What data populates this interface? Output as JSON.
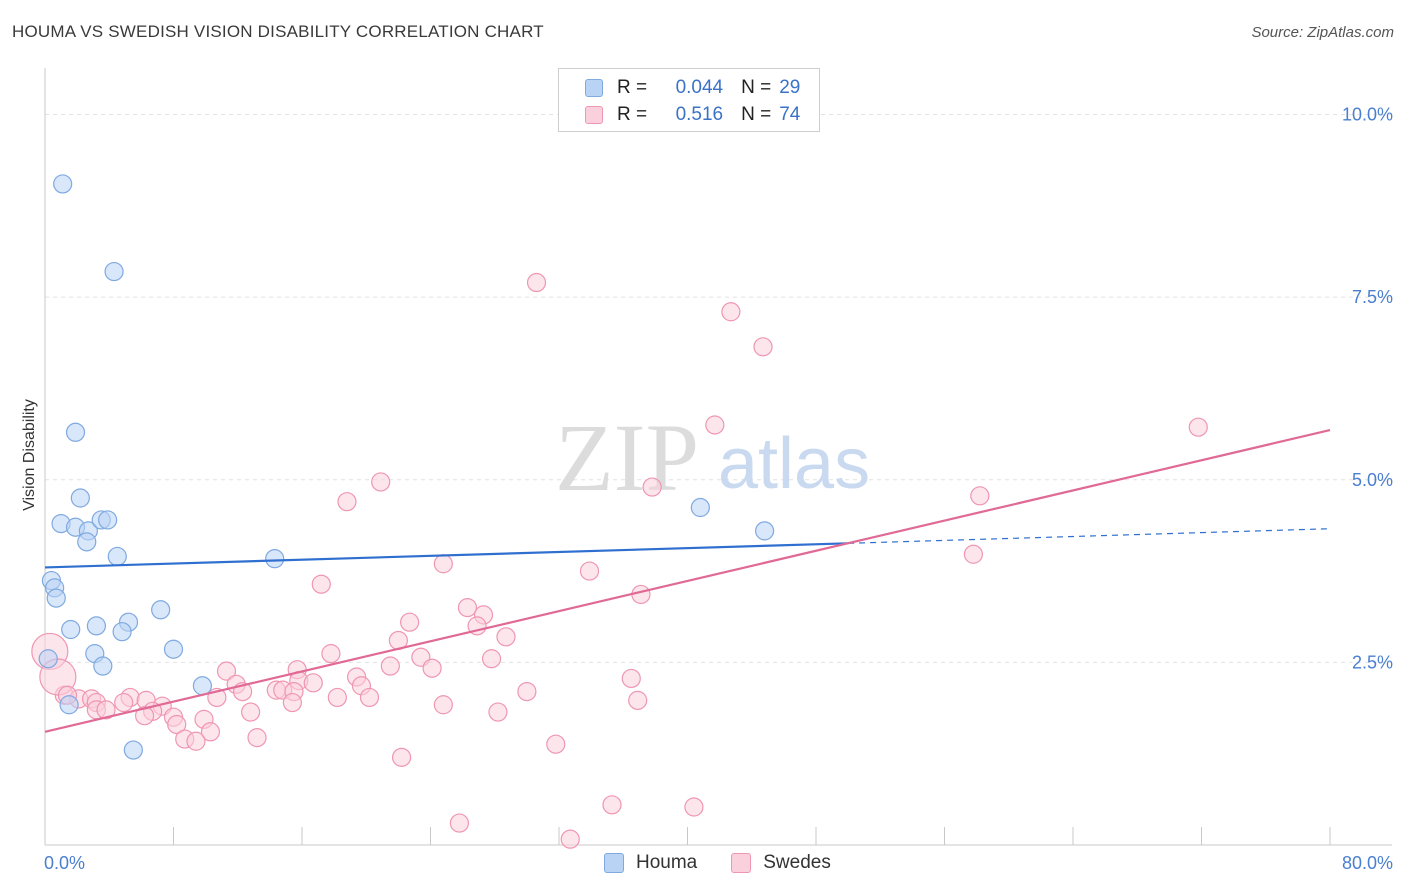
{
  "header": {
    "title": "HOUMA VS SWEDISH VISION DISABILITY CORRELATION CHART",
    "source": "Source: ZipAtlas.com"
  },
  "legend": {
    "rows": [
      {
        "r_label": "R =",
        "r_value": "0.044",
        "n_label": "N =",
        "n_value": "29",
        "color": "#a9c8f0",
        "border": "#7fa9e0"
      },
      {
        "r_label": "R =",
        "r_value": "0.516",
        "n_label": "N =",
        "n_value": "74",
        "color": "#f9c3d3",
        "border": "#ef96b3"
      }
    ]
  },
  "bottom_legend": [
    {
      "label": "Houma",
      "color": "#b9d3f5",
      "border": "#7fa9e0"
    },
    {
      "label": "Swedes",
      "color": "#fbd0dd",
      "border": "#ef96b3"
    }
  ],
  "watermark": {
    "zip": "ZIP",
    "atlas": "atlas"
  },
  "chart_data": {
    "type": "scatter",
    "title": "HOUMA VS SWEDISH VISION DISABILITY CORRELATION CHART",
    "xlabel": "",
    "ylabel": "Vision Disability",
    "xlim": [
      0,
      80
    ],
    "ylim": [
      0,
      10.5
    ],
    "x_tick_labels": [
      "0.0%",
      "80.0%"
    ],
    "y_ticks": [
      2.5,
      5.0,
      7.5,
      10.0
    ],
    "y_tick_labels": [
      "2.5%",
      "5.0%",
      "7.5%",
      "10.0%"
    ],
    "grid": true,
    "series": [
      {
        "name": "Houma",
        "color": "#7fa9e0",
        "fill": "#b9d3f5",
        "trend_color": "#2f6fcf",
        "trend": {
          "x0": 0,
          "y0": 3.8,
          "x1": 50,
          "y1": 4.13,
          "dash_to_x": 80,
          "dash_to_y": 4.33
        },
        "points": [
          [
            1.1,
            9.05
          ],
          [
            4.3,
            7.85
          ],
          [
            1.9,
            5.65
          ],
          [
            2.2,
            4.75
          ],
          [
            1.0,
            4.4
          ],
          [
            1.9,
            4.35
          ],
          [
            2.7,
            4.3
          ],
          [
            3.5,
            4.45
          ],
          [
            3.9,
            4.45
          ],
          [
            2.6,
            4.15
          ],
          [
            4.5,
            3.95
          ],
          [
            14.3,
            3.92
          ],
          [
            40.8,
            4.62
          ],
          [
            44.8,
            4.3
          ],
          [
            0.4,
            3.62
          ],
          [
            0.6,
            3.52
          ],
          [
            0.7,
            3.38
          ],
          [
            1.6,
            2.95
          ],
          [
            3.2,
            3.0
          ],
          [
            5.2,
            3.05
          ],
          [
            7.2,
            3.22
          ],
          [
            4.8,
            2.92
          ],
          [
            3.1,
            2.62
          ],
          [
            8.0,
            2.68
          ],
          [
            3.6,
            2.45
          ],
          [
            0.2,
            2.55
          ],
          [
            9.8,
            2.18
          ],
          [
            1.5,
            1.92
          ],
          [
            5.5,
            1.3
          ]
        ]
      },
      {
        "name": "Swedes",
        "color": "#ef96b3",
        "fill": "#fbd0dd",
        "trend_color": "#e06a95",
        "trend": {
          "x0": 0,
          "y0": 1.55,
          "x1": 80,
          "y1": 5.68
        },
        "points": [
          [
            30.6,
            7.7
          ],
          [
            42.7,
            7.3
          ],
          [
            44.7,
            6.82
          ],
          [
            41.7,
            5.75
          ],
          [
            71.8,
            5.72
          ],
          [
            20.9,
            4.97
          ],
          [
            18.8,
            4.7
          ],
          [
            37.8,
            4.9
          ],
          [
            58.2,
            4.78
          ],
          [
            57.8,
            3.98
          ],
          [
            24.8,
            3.85
          ],
          [
            33.9,
            3.75
          ],
          [
            17.2,
            3.57
          ],
          [
            37.1,
            3.43
          ],
          [
            26.3,
            3.25
          ],
          [
            27.3,
            3.15
          ],
          [
            22.7,
            3.05
          ],
          [
            26.9,
            3.0
          ],
          [
            28.7,
            2.85
          ],
          [
            22.0,
            2.8
          ],
          [
            17.8,
            2.62
          ],
          [
            23.4,
            2.57
          ],
          [
            27.8,
            2.55
          ],
          [
            21.5,
            2.45
          ],
          [
            24.1,
            2.42
          ],
          [
            15.7,
            2.4
          ],
          [
            11.3,
            2.38
          ],
          [
            19.4,
            2.3
          ],
          [
            36.5,
            2.28
          ],
          [
            15.8,
            2.25
          ],
          [
            16.7,
            2.22
          ],
          [
            11.9,
            2.2
          ],
          [
            19.7,
            2.18
          ],
          [
            14.4,
            2.12
          ],
          [
            14.8,
            2.12
          ],
          [
            12.3,
            2.1
          ],
          [
            15.5,
            2.1
          ],
          [
            30.0,
            2.1
          ],
          [
            10.7,
            2.02
          ],
          [
            18.2,
            2.02
          ],
          [
            20.2,
            2.02
          ],
          [
            1.2,
            2.05
          ],
          [
            2.1,
            2.0
          ],
          [
            2.9,
            2.0
          ],
          [
            5.3,
            2.02
          ],
          [
            6.3,
            1.98
          ],
          [
            36.9,
            1.98
          ],
          [
            3.2,
            1.95
          ],
          [
            4.9,
            1.95
          ],
          [
            15.4,
            1.95
          ],
          [
            24.8,
            1.92
          ],
          [
            7.3,
            1.9
          ],
          [
            3.2,
            1.85
          ],
          [
            3.8,
            1.85
          ],
          [
            6.7,
            1.83
          ],
          [
            12.8,
            1.82
          ],
          [
            28.2,
            1.82
          ],
          [
            6.2,
            1.77
          ],
          [
            8.0,
            1.75
          ],
          [
            9.9,
            1.72
          ],
          [
            8.2,
            1.65
          ],
          [
            10.3,
            1.55
          ],
          [
            8.7,
            1.45
          ],
          [
            13.2,
            1.47
          ],
          [
            9.4,
            1.42
          ],
          [
            31.8,
            1.38
          ],
          [
            22.2,
            1.2
          ],
          [
            35.3,
            0.55
          ],
          [
            40.4,
            0.52
          ],
          [
            25.8,
            0.3
          ],
          [
            32.7,
            0.08
          ],
          [
            0.3,
            2.65
          ],
          [
            0.8,
            2.3
          ],
          [
            1.4,
            2.05
          ]
        ]
      }
    ]
  }
}
